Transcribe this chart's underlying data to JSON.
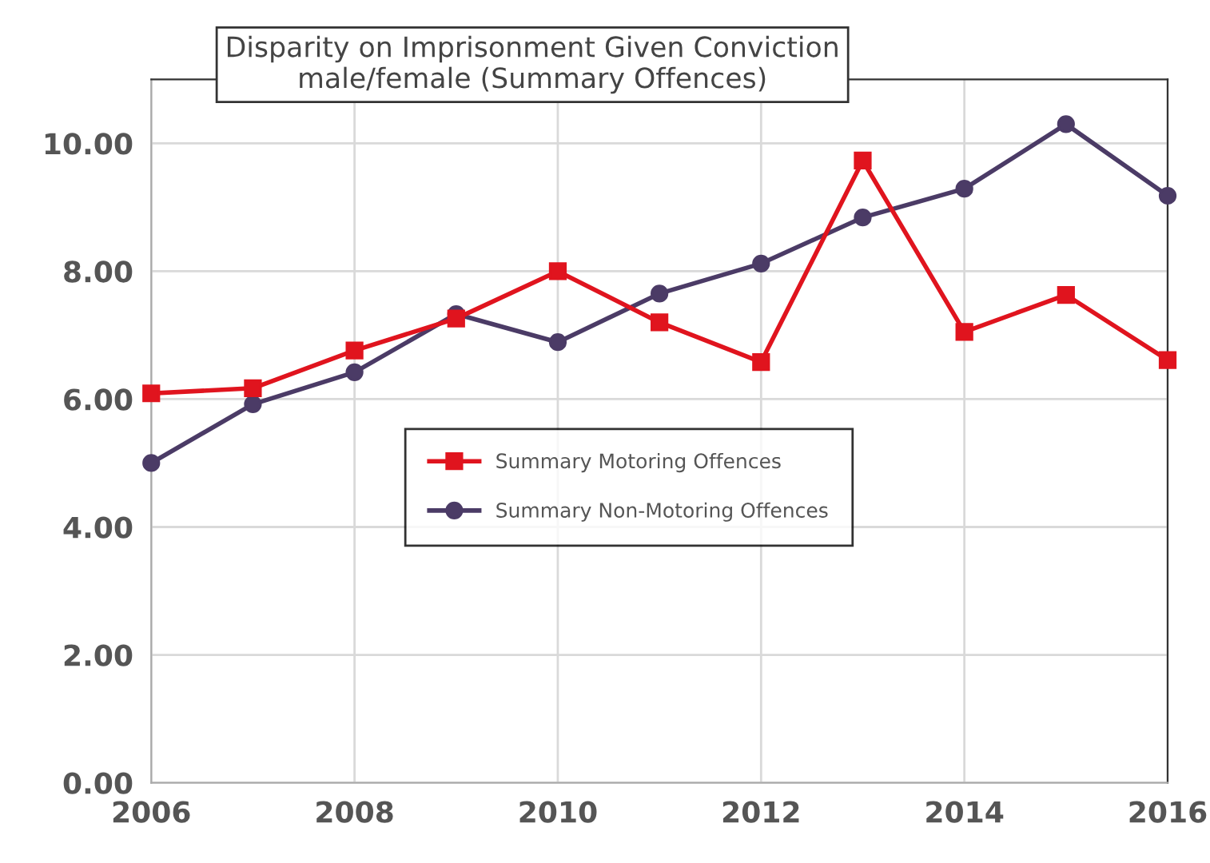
{
  "chart_data": {
    "type": "line",
    "title": "Disparity on Imprisonment Given Conviction\nmale/female (Summary Offences)",
    "x": [
      2006,
      2007,
      2008,
      2009,
      2010,
      2011,
      2012,
      2013,
      2014,
      2015,
      2016
    ],
    "series": [
      {
        "name": "Summary Motoring Offences",
        "color": "#e0141e",
        "marker": "square",
        "values": [
          6.09,
          6.17,
          6.76,
          7.26,
          8.0,
          7.2,
          6.58,
          9.73,
          7.05,
          7.63,
          6.61
        ]
      },
      {
        "name": "Summary Non-Motoring Offences",
        "color": "#4b3b66",
        "marker": "circle",
        "values": [
          5.0,
          5.92,
          6.42,
          7.33,
          6.89,
          7.65,
          8.12,
          8.84,
          9.29,
          10.3,
          9.18
        ]
      }
    ],
    "xlim": [
      2006,
      2016
    ],
    "xticks": [
      2006,
      2008,
      2010,
      2012,
      2014,
      2016
    ],
    "ylim": [
      0,
      11
    ],
    "yticks": [
      {
        "value": 0,
        "label": "0.00"
      },
      {
        "value": 2,
        "label": "2.00"
      },
      {
        "value": 4,
        "label": "4.00"
      },
      {
        "value": 6,
        "label": "6.00"
      },
      {
        "value": 8,
        "label": "8.00"
      },
      {
        "value": 10,
        "label": "10.00"
      }
    ],
    "grid": true,
    "legend": "center",
    "line_style": "solid"
  }
}
